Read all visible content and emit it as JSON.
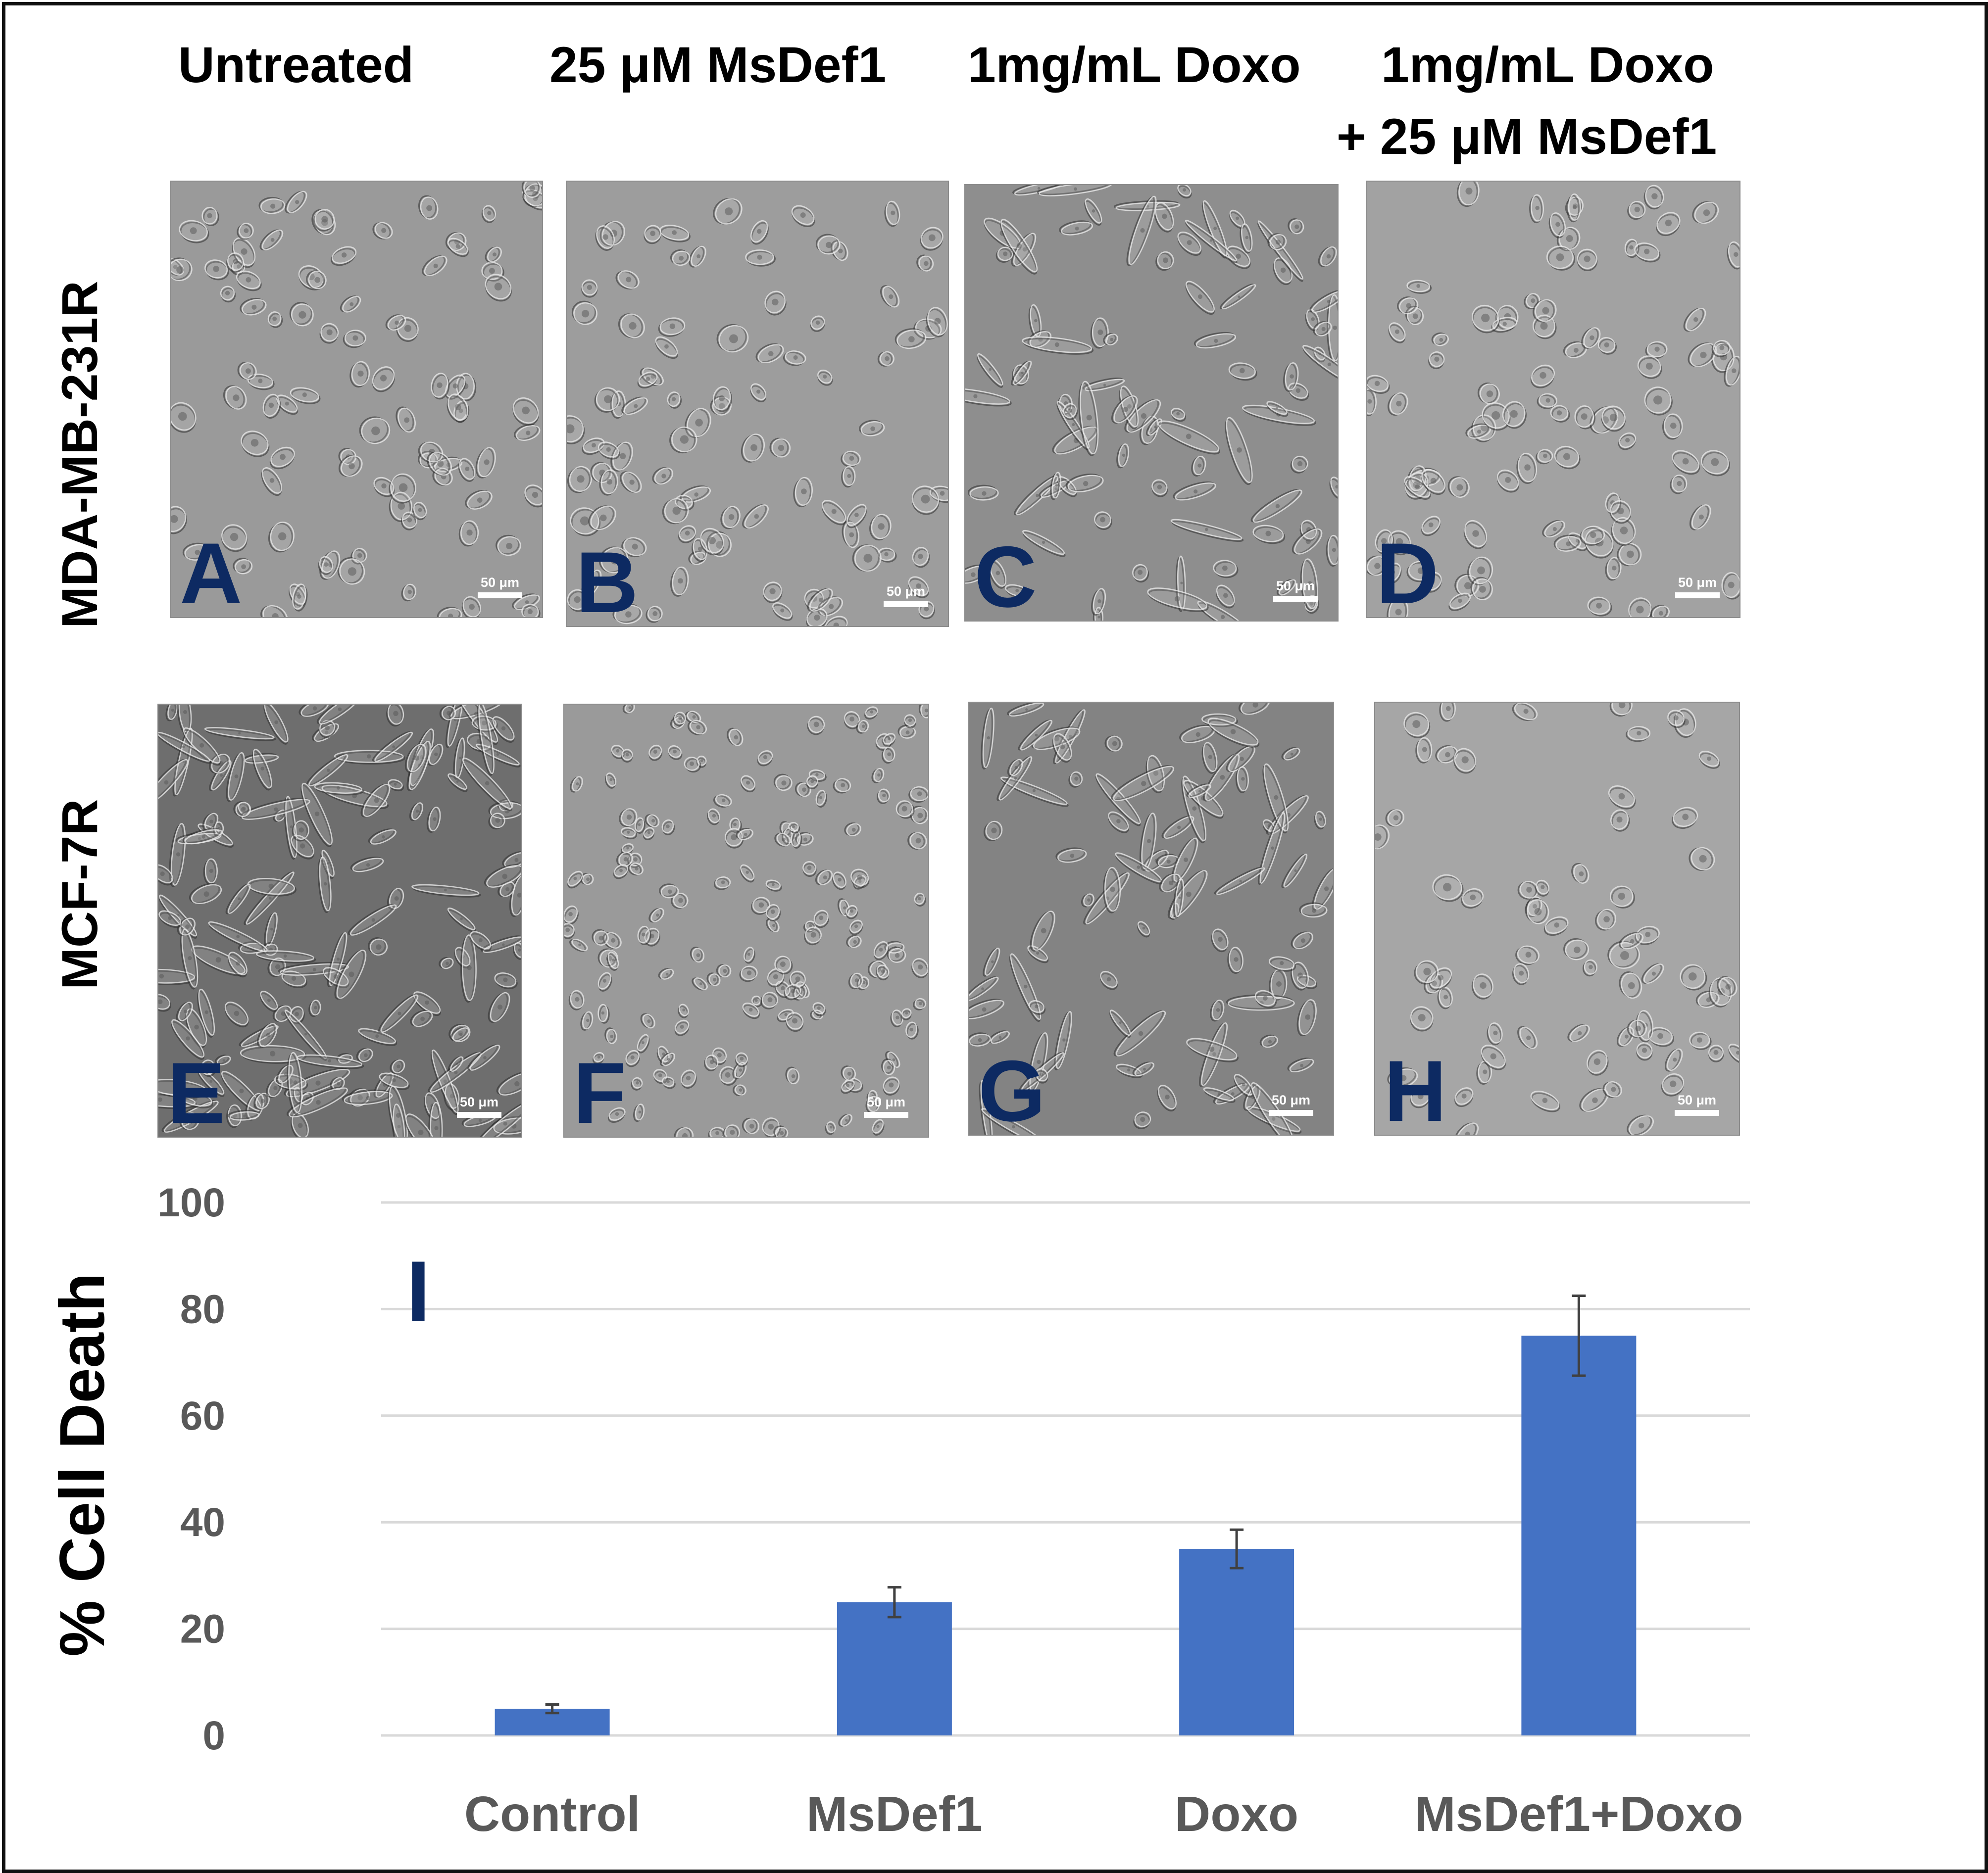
{
  "column_titles": [
    "Untreated",
    "25 μM MsDef1",
    "1mg/mL Doxo",
    "1mg/mL Doxo",
    "+ 25 μM MsDef1"
  ],
  "row_labels": [
    "MDA-MB-231R",
    "MCF-7R"
  ],
  "panels": [
    {
      "letter": "A",
      "scale": "50 μm",
      "tone": "#9a9a9a",
      "cells": "sparse-large"
    },
    {
      "letter": "B",
      "scale": "50 μm",
      "tone": "#9d9d9d",
      "cells": "sparse-large"
    },
    {
      "letter": "C",
      "scale": "50 μm",
      "tone": "#8e8e8e",
      "cells": "spindle"
    },
    {
      "letter": "D",
      "scale": "50 μm",
      "tone": "#a2a2a2",
      "cells": "rounded"
    },
    {
      "letter": "E",
      "scale": "50 μm",
      "tone": "#6e6e6e",
      "cells": "dense-spindle"
    },
    {
      "letter": "F",
      "scale": "50 μm",
      "tone": "#9a9a9a",
      "cells": "dense-small"
    },
    {
      "letter": "G",
      "scale": "50 μm",
      "tone": "#838383",
      "cells": "spindle"
    },
    {
      "letter": "H",
      "scale": "50 μm",
      "tone": "#a6a6a6",
      "cells": "sparse-round"
    }
  ],
  "chart_panel_letter": "I",
  "colors": {
    "bar": "#4472c4",
    "letter": "#0d2a62",
    "grid": "#d9d9d9",
    "tick_text": "#595959",
    "error": "#404040"
  },
  "chart_data": {
    "type": "bar",
    "categories": [
      "Control",
      "MsDef1",
      "Doxo",
      "MsDef1+Doxo"
    ],
    "values": [
      5,
      25,
      35,
      75
    ],
    "errors": [
      0.8,
      2.8,
      3.6,
      7.5
    ],
    "ylabel": "% Cell Death",
    "xlabel": "",
    "ylim": [
      0,
      100
    ],
    "yticks": [
      0,
      20,
      40,
      60,
      80,
      100
    ],
    "grid": true
  }
}
